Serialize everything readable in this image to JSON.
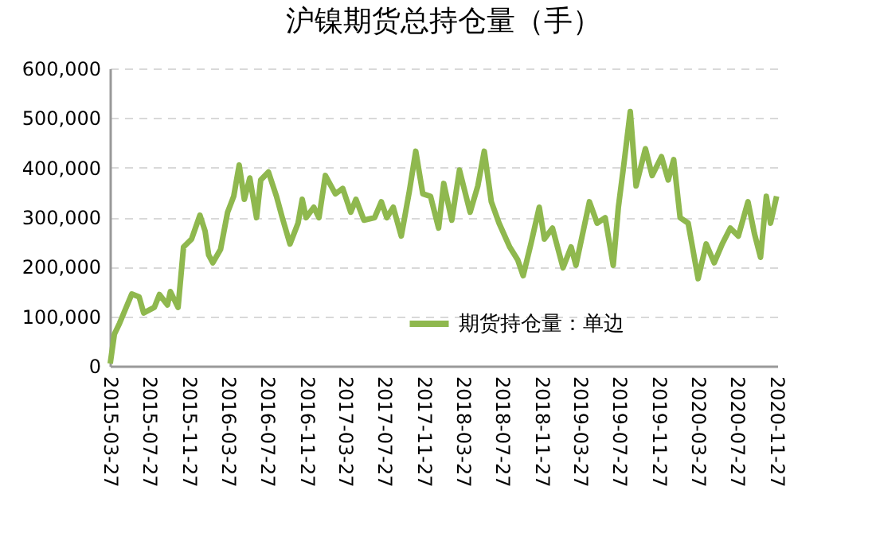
{
  "chart_data": {
    "type": "line",
    "title": "沪镍期货总持仓量（手）",
    "x": [
      "2015-03-28",
      "2015-04-10",
      "2015-04-26",
      "2015-06-03",
      "2015-06-26",
      "2015-07-10",
      "2015-08-12",
      "2015-08-28",
      "2015-09-22",
      "2015-10-01",
      "2015-10-25",
      "2015-11-11",
      "2015-12-06",
      "2016-01-01",
      "2016-01-17",
      "2016-01-28",
      "2016-02-10",
      "2016-03-05",
      "2016-03-27",
      "2016-04-15",
      "2016-05-02",
      "2016-05-18",
      "2016-06-04",
      "2016-06-25",
      "2016-07-08",
      "2016-08-01",
      "2016-08-26",
      "2016-09-13",
      "2016-10-07",
      "2016-11-01",
      "2016-11-14",
      "2016-11-26",
      "2016-12-20",
      "2017-01-05",
      "2017-01-25",
      "2017-02-25",
      "2017-03-20",
      "2017-04-14",
      "2017-04-30",
      "2017-05-25",
      "2017-06-27",
      "2017-07-18",
      "2017-08-04",
      "2017-08-24",
      "2017-09-18",
      "2017-10-13",
      "2017-11-02",
      "2017-11-24",
      "2017-12-18",
      "2018-01-12",
      "2018-01-28",
      "2018-02-22",
      "2018-03-18",
      "2018-04-20",
      "2018-05-14",
      "2018-06-03",
      "2018-06-25",
      "2018-07-19",
      "2018-08-21",
      "2018-09-15",
      "2018-10-02",
      "2018-10-26",
      "2018-11-21",
      "2018-12-07",
      "2019-01-01",
      "2019-02-03",
      "2019-02-28",
      "2019-03-15",
      "2019-04-26",
      "2019-05-20",
      "2019-06-14",
      "2019-07-09",
      "2019-07-25",
      "2019-08-11",
      "2019-08-31",
      "2019-09-18",
      "2019-10-17",
      "2019-11-07",
      "2019-12-06",
      "2019-12-27",
      "2020-01-13",
      "2020-02-02",
      "2020-02-27",
      "2020-03-29",
      "2020-04-23",
      "2020-05-18",
      "2020-06-12",
      "2020-07-07",
      "2020-08-01",
      "2020-08-31",
      "2020-09-20",
      "2020-10-09",
      "2020-10-27",
      "2020-11-09",
      "2020-11-28"
    ],
    "series": [
      {
        "name": "期货持仓量：单边",
        "color": "#8fb84e",
        "values": [
          5000,
          64000,
          86000,
          145000,
          139000,
          107000,
          118000,
          144000,
          123000,
          150000,
          118000,
          240000,
          256000,
          304000,
          272000,
          224000,
          208000,
          235000,
          310000,
          342000,
          405000,
          336000,
          379000,
          299000,
          375000,
          391000,
          342000,
          299000,
          246000,
          288000,
          336000,
          299000,
          320000,
          299000,
          384000,
          347000,
          358000,
          310000,
          336000,
          294000,
          299000,
          331000,
          299000,
          320000,
          262000,
          352000,
          433000,
          347000,
          342000,
          278000,
          368000,
          294000,
          395000,
          310000,
          363000,
          433000,
          331000,
          288000,
          240000,
          214000,
          182000,
          246000,
          320000,
          256000,
          278000,
          198000,
          240000,
          203000,
          331000,
          288000,
          299000,
          203000,
          320000,
          406000,
          513000,
          363000,
          438000,
          384000,
          422000,
          375000,
          416000,
          299000,
          288000,
          176000,
          246000,
          208000,
          246000,
          278000,
          262000,
          331000,
          267000,
          219000,
          342000,
          288000,
          342000
        ]
      }
    ],
    "xlim": [
      "2015-03-27",
      "2020-11-30"
    ],
    "xticks": [
      "2015-03-27",
      "2015-07-27",
      "2015-11-27",
      "2016-03-27",
      "2016-07-27",
      "2016-11-27",
      "2017-03-27",
      "2017-07-27",
      "2017-11-27",
      "2018-03-27",
      "2018-07-27",
      "2018-11-27",
      "2019-03-27",
      "2019-07-27",
      "2019-11-27",
      "2020-03-27",
      "2020-07-27",
      "2020-11-27"
    ],
    "ylim": [
      0,
      600000
    ],
    "yticks": [
      0,
      {
        "value": 100000,
        "label": "100,000"
      },
      {
        "value": 200000,
        "label": "200,000"
      },
      {
        "value": 300000,
        "label": "300,000"
      },
      {
        "value": 400000,
        "label": "400,000"
      },
      {
        "value": 500000,
        "label": "500,000"
      },
      {
        "value": 600000,
        "label": "600,000"
      }
    ],
    "grid": "y",
    "legend": "bottom"
  }
}
